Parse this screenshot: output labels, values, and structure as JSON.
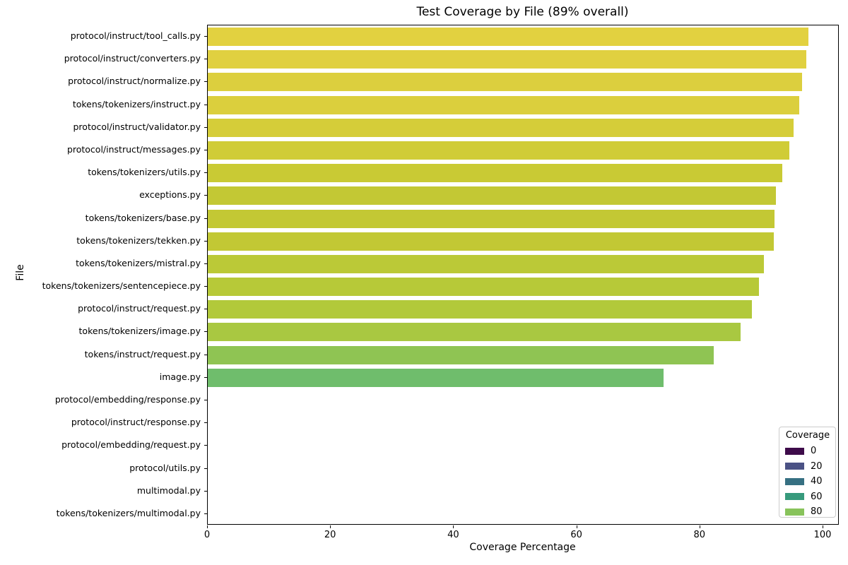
{
  "chart_data": {
    "type": "bar",
    "orientation": "horizontal",
    "title": "Test Coverage by File (89% overall)",
    "xlabel": "Coverage Percentage",
    "ylabel": "File",
    "xlim": [
      0,
      100
    ],
    "x_ticks": [
      0,
      20,
      40,
      60,
      80,
      100
    ],
    "grid": false,
    "colormap": "viridis-desaturated",
    "categories": [
      "protocol/instruct/tool_calls.py",
      "protocol/instruct/converters.py",
      "protocol/instruct/normalize.py",
      "tokens/tokenizers/instruct.py",
      "protocol/instruct/validator.py",
      "protocol/instruct/messages.py",
      "tokens/tokenizers/utils.py",
      "exceptions.py",
      "tokens/tokenizers/base.py",
      "tokens/tokenizers/tekken.py",
      "tokens/tokenizers/mistral.py",
      "tokens/tokenizers/sentencepiece.py",
      "protocol/instruct/request.py",
      "tokens/tokenizers/image.py",
      "tokens/instruct/request.py",
      "image.py",
      "protocol/embedding/response.py",
      "protocol/instruct/response.py",
      "protocol/embedding/request.py",
      "protocol/utils.py",
      "multimodal.py",
      "tokens/tokenizers/multimodal.py"
    ],
    "values": [
      97.6,
      97.2,
      96.5,
      96.1,
      95.2,
      94.5,
      93.3,
      92.3,
      92.1,
      92.0,
      90.4,
      89.6,
      88.4,
      86.6,
      82.2,
      74.0,
      0.0,
      0.0,
      0.0,
      0.0,
      0.0,
      0.0
    ],
    "bar_colors": [
      "#e2d140",
      "#e0d040",
      "#dccf3e",
      "#dbcf3d",
      "#d5cd39",
      "#d0cc37",
      "#c9ca34",
      "#c3c834",
      "#c3c834",
      "#c2c834",
      "#bbc937",
      "#b7c938",
      "#b2c93a",
      "#a9c841",
      "#8fc453",
      "#6fbd6c",
      "#3e0b4a",
      "#3e0b4a",
      "#3e0b4a",
      "#3e0b4a",
      "#3e0b4a",
      "#3e0b4a"
    ],
    "legend": {
      "title": "Coverage",
      "position": "lower right",
      "entries": [
        {
          "label": "0",
          "color": "#3e0b4a"
        },
        {
          "label": "20",
          "color": "#4b5285"
        },
        {
          "label": "40",
          "color": "#367082"
        },
        {
          "label": "60",
          "color": "#379a7c"
        },
        {
          "label": "80",
          "color": "#88c35b"
        }
      ]
    }
  }
}
